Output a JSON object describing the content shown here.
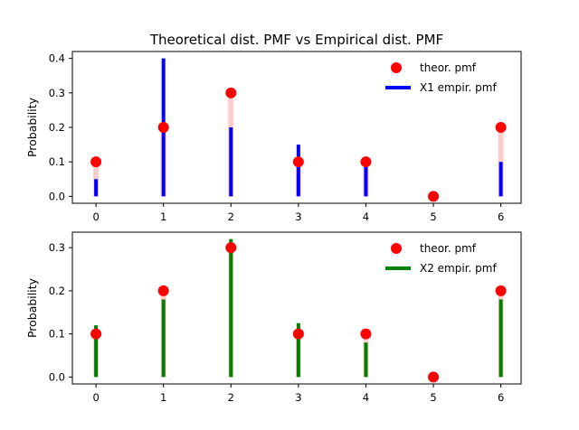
{
  "colors": {
    "theoretical_marker": "#ff0000",
    "theoretical_stem": "#ffcccc",
    "x1_empirical": "#0000ff",
    "x2_empirical": "#008000"
  },
  "chart_data": [
    {
      "type": "bar",
      "title": "Theoretical dist. PMF vs Empirical dist. PMF",
      "xlabel": "",
      "ylabel": "Probability",
      "xlim": [
        -0.35,
        6.3
      ],
      "ylim": [
        -0.02,
        0.42
      ],
      "x": [
        0,
        1,
        2,
        3,
        4,
        5,
        6
      ],
      "x_ticks": [
        "0",
        "1",
        "2",
        "3",
        "4",
        "5",
        "6"
      ],
      "y_ticks": [
        0.0,
        0.1,
        0.2,
        0.3,
        0.4
      ],
      "y_tick_labels": [
        "0.0",
        "0.1",
        "0.2",
        "0.3",
        "0.4"
      ],
      "grid": false,
      "legend_position": "top-right",
      "series": [
        {
          "name": "theor. pmf",
          "kind": "stem-markers",
          "values": [
            0.1,
            0.2,
            0.3,
            0.1,
            0.1,
            0.0,
            0.2
          ]
        },
        {
          "name": "X1 empir. pmf",
          "kind": "vlines",
          "values": [
            0.05,
            0.4,
            0.2,
            0.15,
            0.1,
            0.0,
            0.1
          ]
        }
      ]
    },
    {
      "type": "bar",
      "title": "",
      "xlabel": "",
      "ylabel": "Probability",
      "xlim": [
        -0.35,
        6.3
      ],
      "ylim": [
        -0.016,
        0.336
      ],
      "x": [
        0,
        1,
        2,
        3,
        4,
        5,
        6
      ],
      "x_ticks": [
        "0",
        "1",
        "2",
        "3",
        "4",
        "5",
        "6"
      ],
      "y_ticks": [
        0.0,
        0.1,
        0.2,
        0.3
      ],
      "y_tick_labels": [
        "0.0",
        "0.1",
        "0.2",
        "0.3"
      ],
      "grid": false,
      "legend_position": "top-right",
      "series": [
        {
          "name": "theor. pmf",
          "kind": "stem-markers",
          "values": [
            0.1,
            0.2,
            0.3,
            0.1,
            0.1,
            0.0,
            0.2
          ]
        },
        {
          "name": "X2 empir. pmf",
          "kind": "vlines",
          "values": [
            0.12,
            0.18,
            0.32,
            0.125,
            0.08,
            0.0,
            0.18
          ]
        }
      ]
    }
  ]
}
